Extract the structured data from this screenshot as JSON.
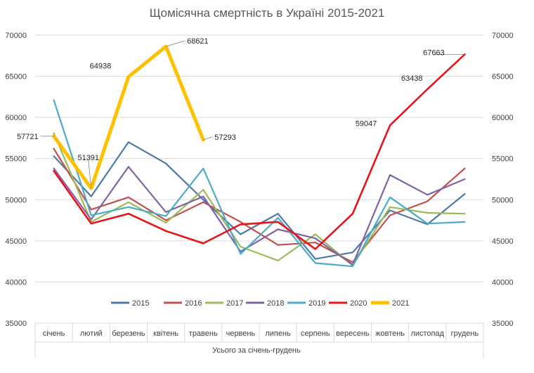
{
  "chart_data": {
    "type": "line",
    "title": "Щомісячна смертність в Україні 2015-2021",
    "xlabel": "Усього за січень-грудень",
    "ylabel": "",
    "ylim": [
      35000,
      70000
    ],
    "y_ticks": [
      35000,
      40000,
      45000,
      50000,
      55000,
      60000,
      65000,
      70000
    ],
    "secondary_y_ticks": [
      35000,
      40000,
      45000,
      50000,
      55000,
      60000,
      65000,
      70000
    ],
    "grid": true,
    "legend_position": "bottom",
    "categories": [
      "січень",
      "лютий",
      "березень",
      "квітень",
      "травень",
      "червень",
      "липень",
      "серпень",
      "вересень",
      "жовтень",
      "листопад",
      "грудень"
    ],
    "series": [
      {
        "name": "2015",
        "color": "#4E79A7",
        "values": [
          55300,
          50400,
          57000,
          54400,
          50000,
          45800,
          48300,
          42800,
          43600,
          48700,
          47000,
          50700
        ]
      },
      {
        "name": "2016",
        "color": "#C0504D",
        "values": [
          56200,
          48800,
          50300,
          47500,
          49700,
          47300,
          44500,
          44800,
          42400,
          48100,
          49800,
          53800
        ]
      },
      {
        "name": "2017",
        "color": "#9BBB59",
        "values": [
          58100,
          47300,
          49700,
          47200,
          51200,
          44300,
          42600,
          45800,
          42000,
          49100,
          48400,
          48300
        ]
      },
      {
        "name": "2018",
        "color": "#8064A2",
        "values": [
          53800,
          47600,
          54000,
          48500,
          50400,
          43700,
          46400,
          45300,
          42100,
          53000,
          50600,
          52500
        ]
      },
      {
        "name": "2019",
        "color": "#4BACC6",
        "values": [
          62100,
          48100,
          49100,
          48000,
          53800,
          43400,
          47800,
          42300,
          41900,
          50300,
          47100,
          47300
        ]
      },
      {
        "name": "2020",
        "color": "#E8141A",
        "values": [
          53500,
          47100,
          48300,
          46200,
          44700,
          47000,
          47300,
          44000,
          48300,
          59047,
          63438,
          67663
        ]
      },
      {
        "name": "2021",
        "color": "#FFC000",
        "values": [
          57721,
          51391,
          64938,
          68621,
          57293,
          null,
          null,
          null,
          null,
          null,
          null,
          null
        ]
      }
    ],
    "annotations": [
      {
        "series": "2021",
        "category": "січень",
        "value": 57721,
        "text": "57721"
      },
      {
        "series": "2021",
        "category": "лютий",
        "value": 51391,
        "text": "51391"
      },
      {
        "series": "2021",
        "category": "березень",
        "value": 64938,
        "text": "64938"
      },
      {
        "series": "2021",
        "category": "квітень",
        "value": 68621,
        "text": "68621"
      },
      {
        "series": "2021",
        "category": "травень",
        "value": 57293,
        "text": "57293"
      },
      {
        "series": "2020",
        "category": "жовтень",
        "value": 59047,
        "text": "59047"
      },
      {
        "series": "2020",
        "category": "листопад",
        "value": 63438,
        "text": "63438"
      },
      {
        "series": "2020",
        "category": "грудень",
        "value": 67663,
        "text": "67663"
      }
    ]
  }
}
